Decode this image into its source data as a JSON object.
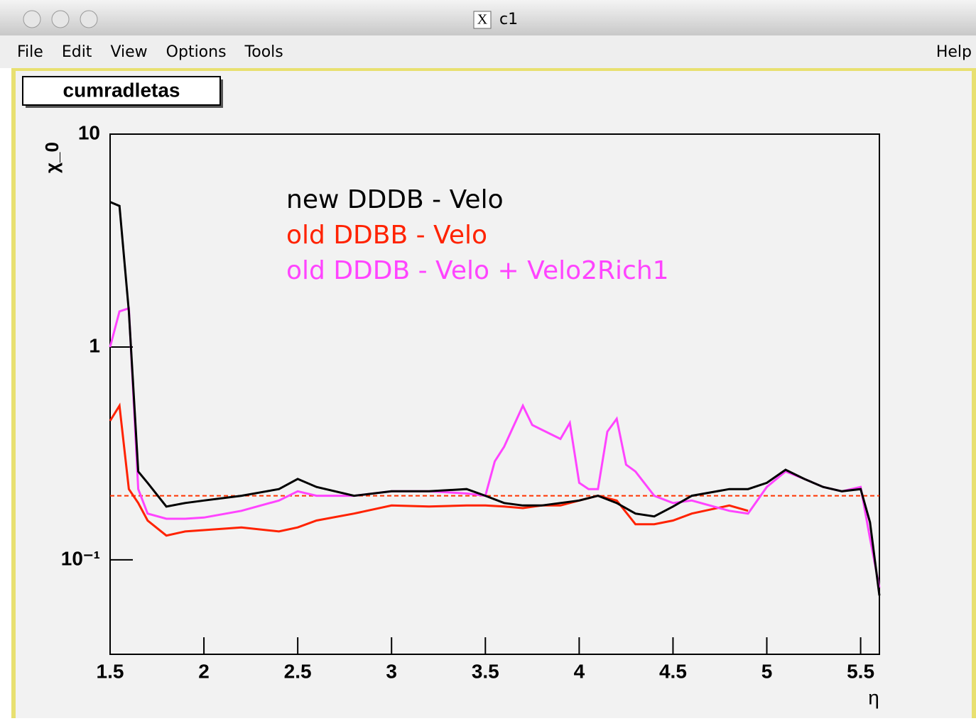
{
  "window": {
    "title": "c1",
    "menu": [
      "File",
      "Edit",
      "View",
      "Options",
      "Tools"
    ],
    "help": "Help"
  },
  "chart_data": {
    "type": "line",
    "title": "cumradletas",
    "xlabel": "η",
    "ylabel": "χ_0",
    "log_y": true,
    "xlim": [
      1.5,
      5.6
    ],
    "ylim": [
      0.036,
      10
    ],
    "xticks": [
      1.5,
      2,
      2.5,
      3,
      3.5,
      4,
      4.5,
      5,
      5.5
    ],
    "yticks": [
      {
        "value": 0.1,
        "label": "10⁻¹"
      },
      1,
      10
    ],
    "reference_line": {
      "value": 0.2,
      "color": "#ff3300",
      "dashed": true
    },
    "series": [
      {
        "name": "old DDBB - Velo",
        "color": "#ff2200",
        "x": [
          1.5,
          1.55,
          1.6,
          1.65,
          1.7,
          1.8,
          1.9,
          2,
          2.2,
          2.4,
          2.5,
          2.6,
          2.8,
          3,
          3.2,
          3.4,
          3.5,
          3.6,
          3.7,
          3.8,
          3.9,
          4,
          4.1,
          4.2,
          4.3,
          4.4,
          4.5,
          4.6,
          4.8,
          4.9
        ],
        "values": [
          0.45,
          0.53,
          0.215,
          0.185,
          0.153,
          0.13,
          0.136,
          0.138,
          0.142,
          0.136,
          0.142,
          0.153,
          0.165,
          0.18,
          0.178,
          0.18,
          0.18,
          0.178,
          0.175,
          0.18,
          0.18,
          0.19,
          0.2,
          0.19,
          0.147,
          0.147,
          0.153,
          0.165,
          0.18,
          0.17
        ]
      },
      {
        "name": "old DDDB - Velo + Velo2Rich1",
        "color": "#ff44ff",
        "x": [
          1.5,
          1.55,
          1.6,
          1.65,
          1.7,
          1.8,
          1.9,
          2,
          2.2,
          2.4,
          2.5,
          2.6,
          2.8,
          3,
          3.2,
          3.4,
          3.5,
          3.55,
          3.6,
          3.7,
          3.75,
          3.9,
          3.95,
          4,
          4.05,
          4.1,
          4.15,
          4.2,
          4.25,
          4.3,
          4.4,
          4.5,
          4.6,
          4.8,
          4.9,
          5,
          5.1,
          5.2,
          5.3,
          5.4,
          5.5,
          5.55,
          5.6
        ],
        "values": [
          1.0,
          1.47,
          1.52,
          0.215,
          0.165,
          0.156,
          0.156,
          0.158,
          0.17,
          0.19,
          0.21,
          0.2,
          0.2,
          0.21,
          0.21,
          0.205,
          0.2,
          0.29,
          0.34,
          0.53,
          0.43,
          0.37,
          0.44,
          0.23,
          0.215,
          0.215,
          0.4,
          0.46,
          0.28,
          0.26,
          0.2,
          0.185,
          0.19,
          0.17,
          0.165,
          0.22,
          0.26,
          0.24,
          0.22,
          0.21,
          0.22,
          0.126,
          0.074
        ]
      },
      {
        "name": "new DDDB - Velo",
        "color": "#000000",
        "x": [
          1.5,
          1.55,
          1.6,
          1.65,
          1.7,
          1.8,
          1.9,
          2,
          2.2,
          2.4,
          2.5,
          2.6,
          2.8,
          3,
          3.2,
          3.4,
          3.5,
          3.6,
          3.7,
          3.8,
          3.9,
          4,
          4.1,
          4.2,
          4.3,
          4.4,
          4.5,
          4.6,
          4.8,
          4.9,
          5,
          5.1,
          5.2,
          5.3,
          5.4,
          5.5,
          5.55,
          5.6
        ],
        "values": [
          4.8,
          4.6,
          1.47,
          0.26,
          0.23,
          0.178,
          0.185,
          0.19,
          0.2,
          0.215,
          0.24,
          0.22,
          0.2,
          0.21,
          0.21,
          0.215,
          0.2,
          0.185,
          0.18,
          0.18,
          0.185,
          0.19,
          0.2,
          0.185,
          0.165,
          0.16,
          0.178,
          0.2,
          0.215,
          0.215,
          0.23,
          0.265,
          0.24,
          0.22,
          0.21,
          0.215,
          0.15,
          0.068
        ]
      }
    ],
    "legend_order": [
      2,
      0,
      1
    ]
  }
}
